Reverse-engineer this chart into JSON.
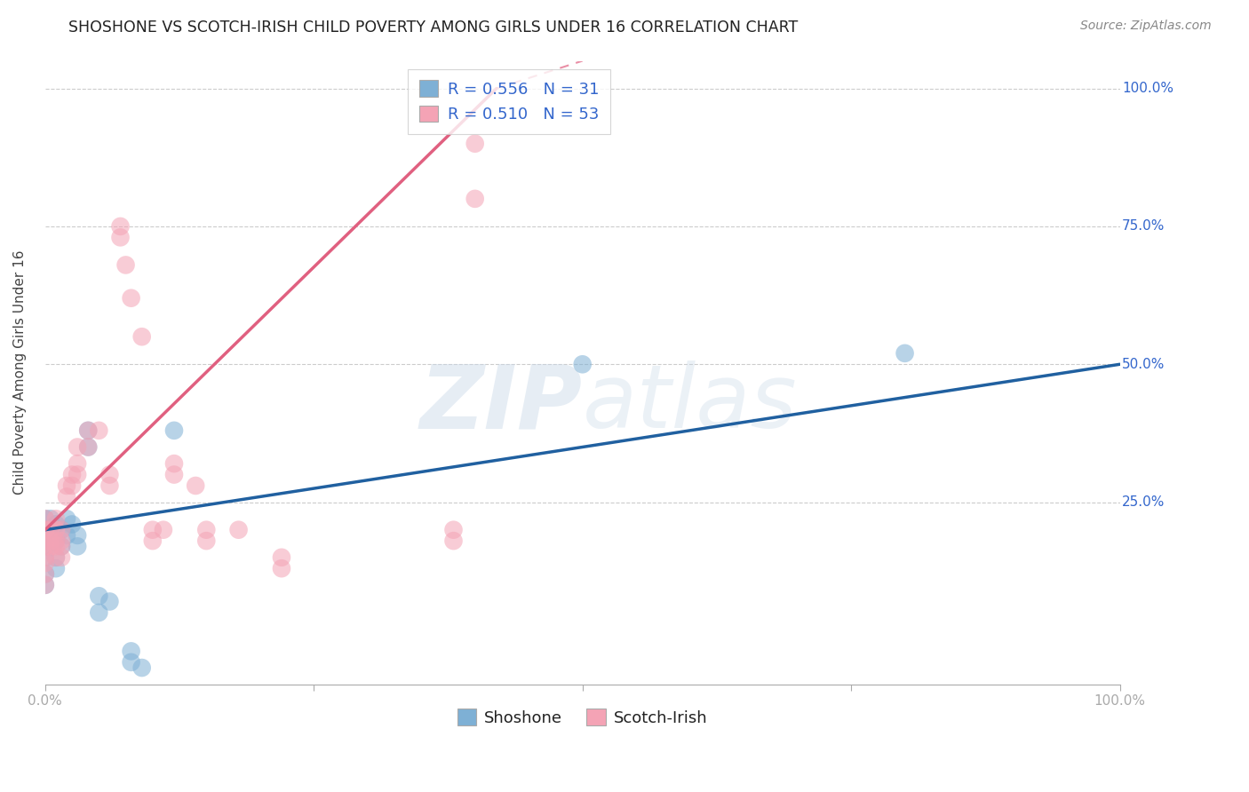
{
  "title": "SHOSHONE VS SCOTCH-IRISH CHILD POVERTY AMONG GIRLS UNDER 16 CORRELATION CHART",
  "source": "Source: ZipAtlas.com",
  "ylabel": "Child Poverty Among Girls Under 16",
  "xlim": [
    0.0,
    1.0
  ],
  "ylim": [
    -0.08,
    1.05
  ],
  "ytick_labels": [
    "25.0%",
    "50.0%",
    "75.0%",
    "100.0%"
  ],
  "ytick_positions": [
    0.25,
    0.5,
    0.75,
    1.0
  ],
  "watermark": "ZIPatlas",
  "shoshone_R": "0.556",
  "shoshone_N": "31",
  "scotchirish_R": "0.510",
  "scotchirish_N": "53",
  "shoshone_color": "#7eb0d5",
  "scotchirish_color": "#f4a3b5",
  "shoshone_line_color": "#2060a0",
  "scotchirish_line_color": "#e06080",
  "shoshone_points": [
    [
      0.0,
      0.2
    ],
    [
      0.0,
      0.22
    ],
    [
      0.0,
      0.18
    ],
    [
      0.0,
      0.15
    ],
    [
      0.0,
      0.17
    ],
    [
      0.0,
      0.12
    ],
    [
      0.0,
      0.1
    ],
    [
      0.005,
      0.22
    ],
    [
      0.005,
      0.2
    ],
    [
      0.01,
      0.21
    ],
    [
      0.01,
      0.18
    ],
    [
      0.01,
      0.15
    ],
    [
      0.01,
      0.13
    ],
    [
      0.015,
      0.2
    ],
    [
      0.015,
      0.17
    ],
    [
      0.02,
      0.22
    ],
    [
      0.02,
      0.19
    ],
    [
      0.025,
      0.21
    ],
    [
      0.03,
      0.19
    ],
    [
      0.03,
      0.17
    ],
    [
      0.04,
      0.38
    ],
    [
      0.04,
      0.35
    ],
    [
      0.05,
      0.08
    ],
    [
      0.05,
      0.05
    ],
    [
      0.06,
      0.07
    ],
    [
      0.08,
      -0.02
    ],
    [
      0.08,
      -0.04
    ],
    [
      0.09,
      -0.05
    ],
    [
      0.12,
      0.38
    ],
    [
      0.5,
      0.5
    ],
    [
      0.8,
      0.52
    ]
  ],
  "scotchirish_points": [
    [
      0.0,
      0.2
    ],
    [
      0.0,
      0.18
    ],
    [
      0.0,
      0.17
    ],
    [
      0.0,
      0.15
    ],
    [
      0.0,
      0.14
    ],
    [
      0.0,
      0.12
    ],
    [
      0.0,
      0.1
    ],
    [
      0.0,
      0.2
    ],
    [
      0.0,
      0.22
    ],
    [
      0.005,
      0.2
    ],
    [
      0.005,
      0.18
    ],
    [
      0.005,
      0.17
    ],
    [
      0.01,
      0.22
    ],
    [
      0.01,
      0.2
    ],
    [
      0.01,
      0.18
    ],
    [
      0.01,
      0.17
    ],
    [
      0.01,
      0.15
    ],
    [
      0.015,
      0.2
    ],
    [
      0.015,
      0.18
    ],
    [
      0.015,
      0.17
    ],
    [
      0.015,
      0.15
    ],
    [
      0.02,
      0.28
    ],
    [
      0.02,
      0.26
    ],
    [
      0.025,
      0.3
    ],
    [
      0.025,
      0.28
    ],
    [
      0.03,
      0.35
    ],
    [
      0.03,
      0.32
    ],
    [
      0.03,
      0.3
    ],
    [
      0.04,
      0.38
    ],
    [
      0.04,
      0.35
    ],
    [
      0.05,
      0.38
    ],
    [
      0.06,
      0.3
    ],
    [
      0.06,
      0.28
    ],
    [
      0.07,
      0.75
    ],
    [
      0.07,
      0.73
    ],
    [
      0.075,
      0.68
    ],
    [
      0.08,
      0.62
    ],
    [
      0.09,
      0.55
    ],
    [
      0.1,
      0.2
    ],
    [
      0.1,
      0.18
    ],
    [
      0.11,
      0.2
    ],
    [
      0.12,
      0.32
    ],
    [
      0.12,
      0.3
    ],
    [
      0.14,
      0.28
    ],
    [
      0.15,
      0.2
    ],
    [
      0.15,
      0.18
    ],
    [
      0.18,
      0.2
    ],
    [
      0.22,
      0.15
    ],
    [
      0.22,
      0.13
    ],
    [
      0.38,
      0.2
    ],
    [
      0.38,
      0.18
    ],
    [
      0.4,
      0.8
    ],
    [
      0.4,
      0.9
    ]
  ],
  "shoshone_trendline": [
    [
      0.0,
      0.2
    ],
    [
      1.0,
      0.5
    ]
  ],
  "scotchirish_trendline_solid": [
    [
      0.0,
      0.2
    ],
    [
      0.42,
      1.0
    ]
  ],
  "scotchirish_trendline_dashed": [
    [
      0.42,
      1.0
    ],
    [
      0.5,
      1.05
    ]
  ],
  "background_color": "#ffffff",
  "grid_color": "#cccccc",
  "title_fontsize": 12.5,
  "label_fontsize": 11,
  "tick_fontsize": 11,
  "legend_fontsize": 13
}
